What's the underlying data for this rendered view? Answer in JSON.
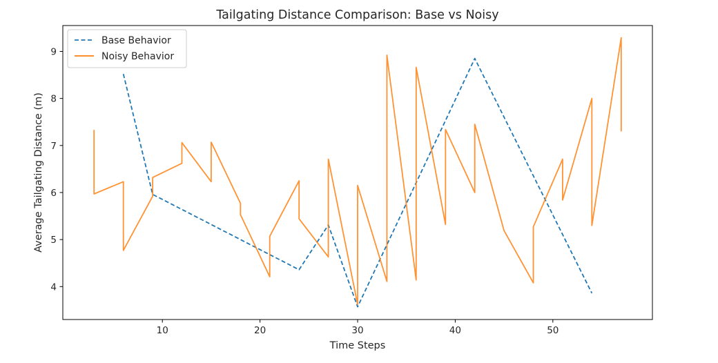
{
  "chart_data": {
    "type": "line",
    "title": "Tailgating Distance Comparison: Base vs Noisy",
    "xlabel": "Time Steps",
    "ylabel": "Average Tailgating Distance (m)",
    "xlim": [
      -0.2,
      60.2
    ],
    "ylim": [
      3.3,
      9.55
    ],
    "x_ticks": [
      10,
      20,
      30,
      40,
      50
    ],
    "y_ticks": [
      4,
      5,
      6,
      7,
      8,
      9
    ],
    "x_tick_labels": [
      "10",
      "20",
      "30",
      "40",
      "50"
    ],
    "y_tick_labels": [
      "4",
      "5",
      "6",
      "7",
      "8",
      "9"
    ],
    "grid": false,
    "legend_position": "upper left",
    "series": [
      {
        "name": "Base Behavior",
        "color": "#1f77b4",
        "style": "dashed",
        "x": [
          6,
          9,
          24,
          27,
          30,
          42,
          54
        ],
        "y": [
          8.52,
          5.96,
          4.36,
          5.31,
          3.57,
          8.85,
          3.86
        ]
      },
      {
        "name": "Noisy Behavior",
        "color": "#ff7f0e",
        "style": "solid",
        "x": [
          3,
          3,
          6,
          6,
          9,
          9,
          12,
          12,
          15,
          15,
          18,
          18,
          21,
          21,
          24,
          24,
          27,
          27,
          30,
          30,
          33,
          33,
          36,
          36,
          39,
          39,
          42,
          42,
          45,
          48,
          48,
          51,
          51,
          54,
          54,
          57,
          57
        ],
        "y": [
          7.33,
          5.97,
          6.23,
          4.77,
          5.92,
          6.32,
          6.62,
          7.06,
          6.23,
          7.07,
          5.77,
          5.53,
          4.21,
          5.07,
          6.25,
          5.44,
          4.63,
          6.71,
          3.62,
          6.15,
          4.11,
          8.92,
          4.14,
          8.66,
          5.32,
          7.34,
          6.0,
          7.45,
          5.19,
          4.08,
          5.27,
          6.71,
          5.84,
          8.0,
          5.3,
          9.29,
          7.3
        ]
      }
    ]
  }
}
